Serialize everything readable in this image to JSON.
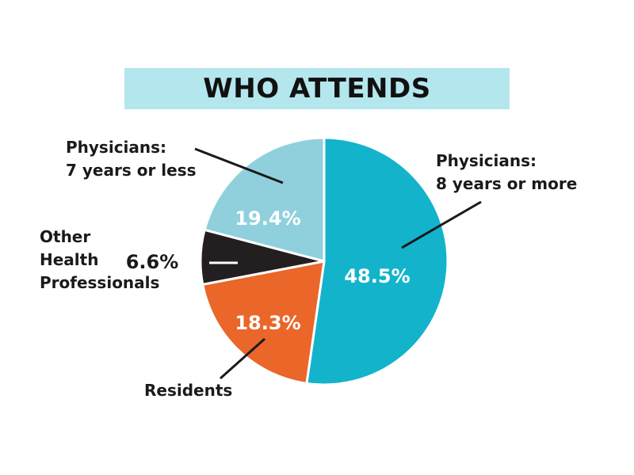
{
  "title": "WHO ATTENDS",
  "chart_data": {
    "type": "pie",
    "title": "WHO ATTENDS",
    "slices": [
      {
        "label_lines": [
          "Physicians:",
          "8 years or more"
        ],
        "value": 48.5,
        "display": "48.5%",
        "color": "#13b3cc"
      },
      {
        "label_lines": [
          "Residents"
        ],
        "value": 18.3,
        "display": "18.3%",
        "color": "#ea6629"
      },
      {
        "label_lines": [
          "Other",
          "Health",
          "Professionals"
        ],
        "value": 6.6,
        "display": "6.6%",
        "color": "#231f20"
      },
      {
        "label_lines": [
          "Physicians:",
          "7 years or less"
        ],
        "value": 19.4,
        "display": "19.4%",
        "color": "#90d0dd"
      }
    ]
  }
}
